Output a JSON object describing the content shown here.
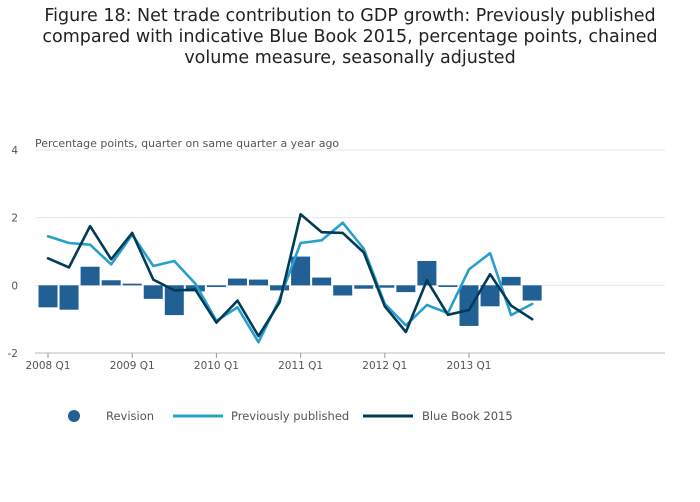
{
  "title": "Figure 18: Net trade contribution to GDP growth: Previously published compared with indicative Blue Book 2015, percentage points, chained volume measure, seasonally adjusted",
  "chart_data": {
    "type": "bar",
    "ylabel": "Percentage points, quarter on same quarter a year ago",
    "xlabel": "",
    "ylim": [
      -2,
      4
    ],
    "yticks": [
      -2,
      0,
      2,
      4
    ],
    "categories": [
      "2008 Q1",
      "2008 Q2",
      "2008 Q3",
      "2008 Q4",
      "2009 Q1",
      "2009 Q2",
      "2009 Q3",
      "2009 Q4",
      "2010 Q1",
      "2010 Q2",
      "2010 Q3",
      "2010 Q4",
      "2011 Q1",
      "2011 Q2",
      "2011 Q3",
      "2011 Q4",
      "2012 Q1",
      "2012 Q2",
      "2012 Q3",
      "2012 Q4",
      "2013 Q1",
      "2013 Q2",
      "2013 Q3",
      "2013 Q4"
    ],
    "xtick_labels": [
      "2008 Q1",
      "2009 Q1",
      "2010 Q1",
      "2011 Q1",
      "2012 Q1",
      "2013 Q1"
    ],
    "grid": true,
    "legend_position": "bottom",
    "series": [
      {
        "name": "Revision",
        "type": "bar",
        "color": "#206095",
        "values": [
          -0.65,
          -0.72,
          0.55,
          0.15,
          0.05,
          -0.4,
          -0.88,
          -0.18,
          -0.05,
          0.2,
          0.17,
          -0.15,
          0.85,
          0.23,
          -0.3,
          -0.1,
          -0.07,
          -0.2,
          0.72,
          -0.05,
          -1.2,
          -0.62,
          0.25,
          -0.45
        ]
      },
      {
        "name": "Previously published",
        "type": "line",
        "color": "#27a0cc",
        "values": [
          1.45,
          1.25,
          1.2,
          0.62,
          1.5,
          0.57,
          0.72,
          0.05,
          -1.05,
          -0.65,
          -1.68,
          -0.4,
          1.25,
          1.33,
          1.85,
          1.08,
          -0.55,
          -1.18,
          -0.58,
          -0.82,
          0.47,
          0.95,
          -0.88,
          -0.55
        ]
      },
      {
        "name": "Blue Book 2015",
        "type": "line",
        "color": "#003c57",
        "values": [
          0.8,
          0.53,
          1.75,
          0.77,
          1.55,
          0.17,
          -0.15,
          -0.13,
          -1.1,
          -0.45,
          -1.5,
          -0.5,
          2.1,
          1.57,
          1.55,
          0.97,
          -0.62,
          -1.38,
          0.15,
          -0.87,
          -0.73,
          0.33,
          -0.6,
          -1.0
        ]
      }
    ]
  }
}
